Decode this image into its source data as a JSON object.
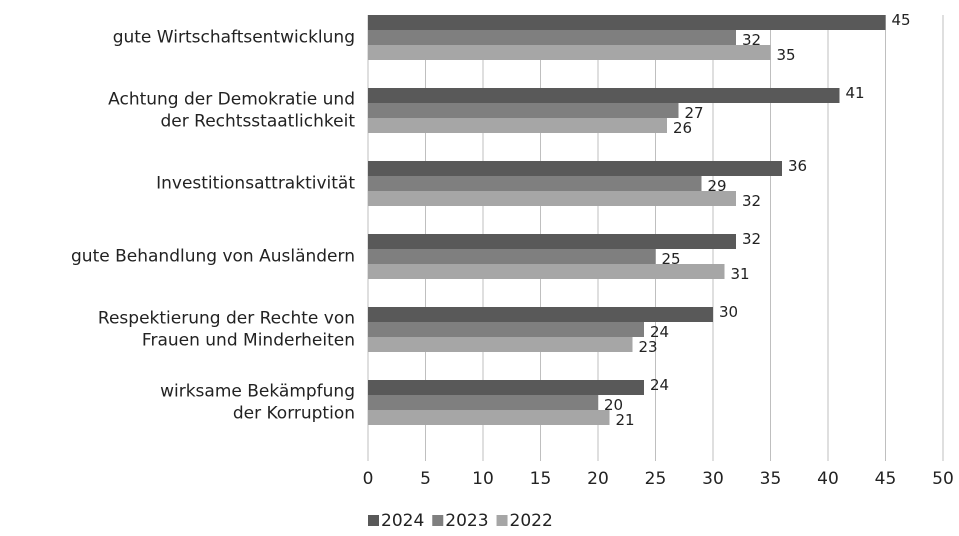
{
  "chart_data": {
    "type": "hbar",
    "categories": [
      "gute Wirtschaftsentwicklung",
      "Achtung der Demokratie und\nder Rechtsstaatlichkeit",
      "Investitionsattraktivität",
      "gute Behandlung von Ausländern",
      "Respektierung der Rechte von\nFrauen und Minderheiten",
      "wirksame Bekämpfung\nder Korruption"
    ],
    "series": [
      {
        "name": "2024",
        "color": "#595959",
        "values": [
          45,
          41,
          36,
          32,
          30,
          24
        ]
      },
      {
        "name": "2023",
        "color": "#7f7f7f",
        "values": [
          32,
          27,
          29,
          25,
          24,
          20
        ]
      },
      {
        "name": "2022",
        "color": "#a6a6a6",
        "values": [
          35,
          26,
          32,
          31,
          23,
          21
        ]
      }
    ],
    "xlim": [
      0,
      50
    ],
    "xticks": [
      0,
      5,
      10,
      15,
      20,
      25,
      30,
      35,
      40,
      45,
      50
    ],
    "grid": true,
    "legend": "bottom"
  }
}
